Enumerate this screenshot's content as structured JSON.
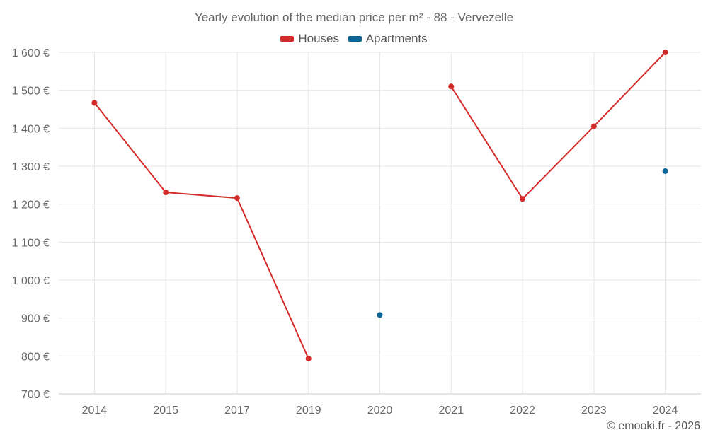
{
  "colors": {
    "houses": "#d42a2a",
    "apartments": "#0b6597",
    "grid": "#e6e6e6",
    "axis": "#cccccc"
  },
  "chart_data": {
    "type": "line",
    "title": "Yearly evolution of the median price per m² - 88 - Vervezelle",
    "categories": [
      "2014",
      "2015",
      "2017",
      "2019",
      "2020",
      "2021",
      "2022",
      "2023",
      "2024"
    ],
    "ylim": [
      700,
      1600
    ],
    "yticks": [
      700,
      800,
      900,
      1000,
      1100,
      1200,
      1300,
      1400,
      1500,
      1600
    ],
    "ytick_labels": [
      "700 €",
      "800 €",
      "900 €",
      "1 000 €",
      "1 100 €",
      "1 200 €",
      "1 300 €",
      "1 400 €",
      "1 500 €",
      "1 600 €"
    ],
    "legend_position": "top-center",
    "series": [
      {
        "name": "Houses",
        "color": "#d42a2a",
        "values": [
          1467,
          1231,
          1216,
          793,
          null,
          1510,
          1214,
          1405,
          1600
        ]
      },
      {
        "name": "Apartments",
        "color": "#0b6597",
        "values": [
          null,
          null,
          null,
          null,
          908,
          null,
          null,
          null,
          1287
        ]
      }
    ]
  },
  "legend": {
    "houses": "Houses",
    "apartments": "Apartments"
  },
  "credit": "© emooki.fr - 2026"
}
